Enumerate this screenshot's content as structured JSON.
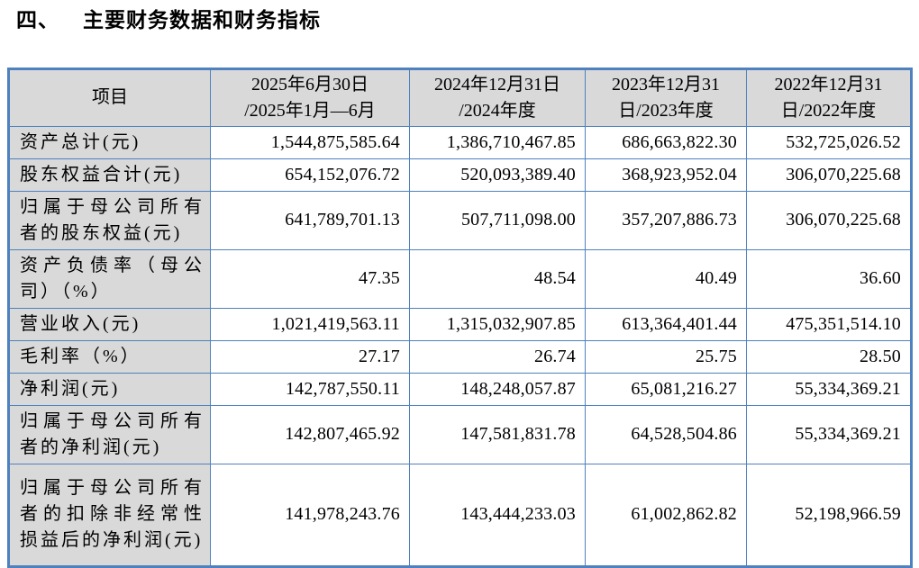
{
  "title": {
    "section_number": "四、",
    "text": "主要财务数据和财务指标"
  },
  "table": {
    "header": [
      "项目",
      "2025年6月30日\n/2025年1月—6月",
      "2024年12月31日\n/2024年度",
      "2023年12月31\n日/2023年度",
      "2022年12月31\n日/2022年度"
    ],
    "rows": [
      {
        "label": "资产总计(元)",
        "values": [
          "1,544,875,585.64",
          "1,386,710,467.85",
          "686,663,822.30",
          "532,725,026.52"
        ]
      },
      {
        "label": "股东权益合计(元)",
        "values": [
          "654,152,076.72",
          "520,093,389.40",
          "368,923,952.04",
          "306,070,225.68"
        ]
      },
      {
        "label": "归属于母公司所有者的股东权益(元)",
        "values": [
          "641,789,701.13",
          "507,711,098.00",
          "357,207,886.73",
          "306,070,225.68"
        ]
      },
      {
        "label": "资产负债率（母公司）（%）",
        "values": [
          "47.35",
          "48.54",
          "40.49",
          "36.60"
        ]
      },
      {
        "label": "营业收入(元)",
        "values": [
          "1,021,419,563.11",
          "1,315,032,907.85",
          "613,364,401.44",
          "475,351,514.10"
        ]
      },
      {
        "label": "毛利率（%）",
        "values": [
          "27.17",
          "26.74",
          "25.75",
          "28.50"
        ]
      },
      {
        "label": "净利润(元)",
        "values": [
          "142,787,550.11",
          "148,248,057.87",
          "65,081,216.27",
          "55,334,369.21"
        ]
      },
      {
        "label": "归属于母公司所有者的净利润(元)",
        "values": [
          "142,807,465.92",
          "147,581,831.78",
          "64,528,504.86",
          "55,334,369.21"
        ]
      },
      {
        "label": "归属于母公司所有者的扣除非经常性损益后的净利润(元)",
        "values": [
          "141,978,243.76",
          "143,444,233.03",
          "61,002,862.82",
          "52,198,966.59"
        ]
      }
    ]
  },
  "colors": {
    "border": "#4E81BD",
    "shaded_cell_bg": "#D9D9D9",
    "text": "#000000",
    "page_bg": "#FFFFFF"
  }
}
